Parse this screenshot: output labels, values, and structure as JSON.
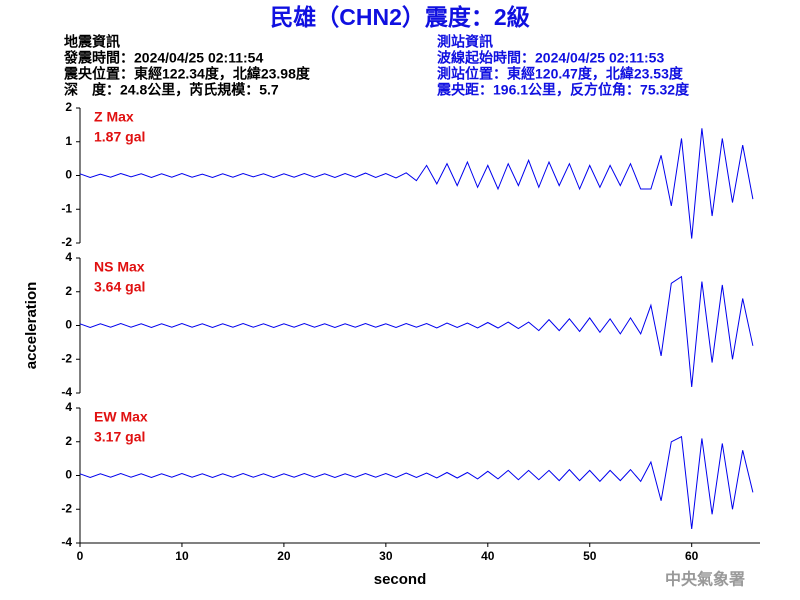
{
  "header": {
    "title": "民雄（CHN2）震度：2級",
    "left": [
      "地震資訊",
      "發震時間：2024/04/25 02:11:54",
      "震央位置：東經122.34度，北緯23.98度",
      "深　度：24.8公里，芮氏規模：5.7"
    ],
    "right": [
      "測站資訊",
      "波線起始時間：2024/04/25 02:11:53",
      "測站位置：東經120.47度，北緯23.53度",
      "震央距：196.1公里，反方位角：75.32度"
    ],
    "credit": "中央氣象署"
  },
  "chart_data": [
    {
      "type": "line",
      "annotation": [
        "Z Max",
        "1.87 gal"
      ],
      "color": "#0000ee",
      "xlim": [
        0,
        66.7
      ],
      "ylim": [
        -2,
        2
      ],
      "yticks": [
        -2,
        -1,
        0,
        1,
        2
      ],
      "x": [
        0,
        1,
        2,
        3,
        4,
        5,
        6,
        7,
        8,
        9,
        10,
        11,
        12,
        13,
        14,
        15,
        16,
        17,
        18,
        19,
        20,
        21,
        22,
        23,
        24,
        25,
        26,
        27,
        28,
        29,
        30,
        31,
        32,
        33,
        34,
        35,
        36,
        37,
        38,
        39,
        40,
        41,
        42,
        43,
        44,
        45,
        46,
        47,
        48,
        49,
        50,
        51,
        52,
        53,
        54,
        55,
        56,
        57,
        58,
        59,
        60,
        61,
        62,
        63,
        64,
        65,
        66
      ],
      "values": [
        0.05,
        -0.06,
        0.04,
        -0.05,
        0.06,
        -0.04,
        0.05,
        -0.06,
        0.05,
        -0.05,
        0.06,
        -0.05,
        0.04,
        -0.06,
        0.05,
        -0.05,
        0.06,
        -0.04,
        0.05,
        -0.06,
        0.05,
        -0.05,
        0.06,
        -0.05,
        0.05,
        -0.06,
        0.06,
        -0.05,
        0.07,
        -0.06,
        0.06,
        -0.07,
        0.08,
        -0.15,
        0.3,
        -0.25,
        0.35,
        -0.3,
        0.4,
        -0.35,
        0.3,
        -0.4,
        0.35,
        -0.3,
        0.45,
        -0.35,
        0.4,
        -0.3,
        0.35,
        -0.4,
        0.3,
        -0.35,
        0.3,
        -0.3,
        0.35,
        -0.4,
        -0.4,
        0.6,
        -0.9,
        1.1,
        -1.87,
        1.4,
        -1.2,
        1.1,
        -0.8,
        0.9,
        -0.7
      ]
    },
    {
      "type": "line",
      "annotation": [
        "NS Max",
        "3.64 gal"
      ],
      "ylabel": "acceleration",
      "color": "#0000ee",
      "xlim": [
        0,
        66.7
      ],
      "ylim": [
        -4,
        4
      ],
      "yticks": [
        -4,
        -2,
        0,
        2,
        4
      ],
      "x": [
        0,
        1,
        2,
        3,
        4,
        5,
        6,
        7,
        8,
        9,
        10,
        11,
        12,
        13,
        14,
        15,
        16,
        17,
        18,
        19,
        20,
        21,
        22,
        23,
        24,
        25,
        26,
        27,
        28,
        29,
        30,
        31,
        32,
        33,
        34,
        35,
        36,
        37,
        38,
        39,
        40,
        41,
        42,
        43,
        44,
        45,
        46,
        47,
        48,
        49,
        50,
        51,
        52,
        53,
        54,
        55,
        56,
        57,
        58,
        59,
        60,
        61,
        62,
        63,
        64,
        65,
        66
      ],
      "values": [
        0.1,
        -0.12,
        0.1,
        -0.1,
        0.12,
        -0.1,
        0.1,
        -0.12,
        0.1,
        -0.1,
        0.12,
        -0.1,
        0.1,
        -0.12,
        0.1,
        -0.1,
        0.12,
        -0.1,
        0.1,
        -0.12,
        0.1,
        -0.1,
        0.12,
        -0.1,
        0.1,
        -0.12,
        0.1,
        -0.1,
        0.12,
        -0.1,
        0.1,
        -0.12,
        0.12,
        -0.1,
        0.12,
        -0.15,
        0.15,
        -0.12,
        0.15,
        -0.15,
        0.18,
        -0.15,
        0.2,
        -0.18,
        0.2,
        -0.3,
        0.35,
        -0.3,
        0.4,
        -0.35,
        0.45,
        -0.4,
        0.4,
        -0.5,
        0.45,
        -0.5,
        1.2,
        -1.8,
        2.5,
        2.9,
        -3.64,
        2.6,
        -2.2,
        2.4,
        -2.0,
        1.6,
        -1.2
      ]
    },
    {
      "type": "line",
      "annotation": [
        "EW Max",
        "3.17 gal"
      ],
      "xlabel": "second",
      "color": "#0000ee",
      "xlim": [
        0,
        66.7
      ],
      "xticks": [
        0,
        10,
        20,
        30,
        40,
        50,
        60
      ],
      "ylim": [
        -4,
        4
      ],
      "yticks": [
        -4,
        -2,
        0,
        2,
        4
      ],
      "x": [
        0,
        1,
        2,
        3,
        4,
        5,
        6,
        7,
        8,
        9,
        10,
        11,
        12,
        13,
        14,
        15,
        16,
        17,
        18,
        19,
        20,
        21,
        22,
        23,
        24,
        25,
        26,
        27,
        28,
        29,
        30,
        31,
        32,
        33,
        34,
        35,
        36,
        37,
        38,
        39,
        40,
        41,
        42,
        43,
        44,
        45,
        46,
        47,
        48,
        49,
        50,
        51,
        52,
        53,
        54,
        55,
        56,
        57,
        58,
        59,
        60,
        61,
        62,
        63,
        64,
        65,
        66
      ],
      "values": [
        0.1,
        -0.12,
        0.1,
        -0.1,
        0.12,
        -0.1,
        0.1,
        -0.12,
        0.1,
        -0.1,
        0.12,
        -0.1,
        0.1,
        -0.12,
        0.1,
        -0.1,
        0.12,
        -0.1,
        0.1,
        -0.12,
        0.1,
        -0.1,
        0.12,
        -0.1,
        0.1,
        -0.12,
        0.1,
        -0.1,
        0.12,
        -0.1,
        0.12,
        -0.12,
        0.15,
        -0.12,
        0.15,
        -0.15,
        0.18,
        -0.15,
        0.18,
        -0.2,
        0.25,
        -0.2,
        0.3,
        -0.25,
        0.3,
        -0.25,
        0.3,
        -0.3,
        0.35,
        -0.3,
        0.3,
        -0.35,
        0.3,
        -0.3,
        0.35,
        -0.35,
        0.8,
        -1.5,
        2.0,
        2.3,
        -3.17,
        2.2,
        -2.3,
        1.9,
        -2.0,
        1.5,
        -1.0
      ]
    }
  ]
}
